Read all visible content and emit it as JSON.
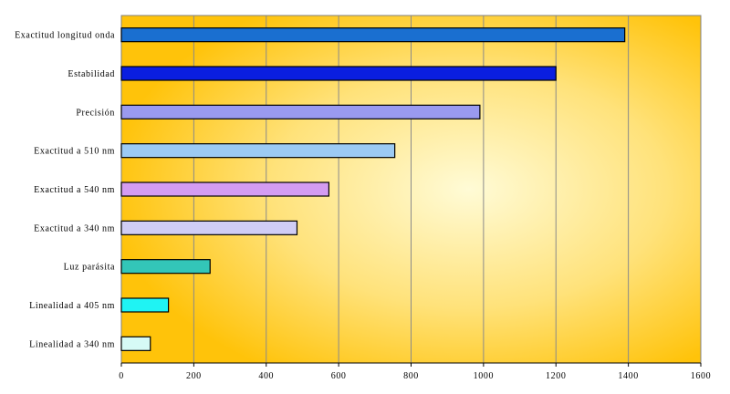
{
  "chart_data": {
    "type": "bar",
    "orientation": "horizontal",
    "title": "",
    "xlabel": "",
    "ylabel": "",
    "categories": [
      "Exactitud longitud onda",
      "Estabilidad",
      "Precisión",
      "Exactitud a 510 nm",
      "Exactitud a 540 nm",
      "Exactitud a 340 nm",
      "Luz parásita",
      "Linealidad a 405 nm",
      "Linealidad a 340 nm"
    ],
    "values": [
      1390,
      1200,
      990,
      755,
      573,
      485,
      245,
      130,
      80
    ],
    "bar_colors": [
      "#1a6fd0",
      "#0a1ee0",
      "#9a9af0",
      "#9ccaf3",
      "#d49cf2",
      "#d0cdf5",
      "#33c6b8",
      "#1ff3f3",
      "#d6faf6"
    ],
    "xlim": [
      0,
      1600
    ],
    "xticks": [
      0,
      200,
      400,
      600,
      800,
      1000,
      1200,
      1400,
      1600
    ],
    "grid": true,
    "background": {
      "edge_color": "#ffc30a",
      "center_color": "#fffbd6"
    }
  }
}
